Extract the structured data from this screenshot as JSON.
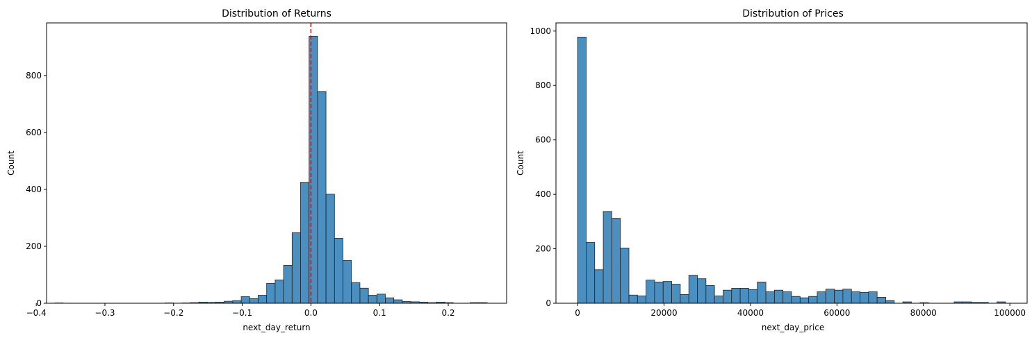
{
  "chart_data": [
    {
      "type": "bar",
      "subtype": "histogram",
      "title": "Distribution of Returns",
      "xlabel": "next_day_return",
      "ylabel": "Count",
      "xlim": [
        -0.385,
        0.285
      ],
      "ylim": [
        0,
        985
      ],
      "xticks": [
        -0.4,
        -0.3,
        -0.2,
        -0.1,
        0.0,
        0.1,
        0.2
      ],
      "xtick_labels": [
        "−0.4",
        "−0.3",
        "−0.2",
        "−0.1",
        "0.0",
        "0.1",
        "0.2"
      ],
      "yticks": [
        0,
        200,
        400,
        600,
        800
      ],
      "ytick_labels": [
        "0",
        "200",
        "400",
        "600",
        "800"
      ],
      "bar_color": "#4a8fc0",
      "reference_line": {
        "x": 0.0,
        "color": "#ff0000",
        "style": "dashed"
      },
      "bin_width": 0.01234,
      "bins": [
        {
          "x": -0.3731,
          "count": 1
        },
        {
          "x": -0.2126,
          "count": 1
        },
        {
          "x": -0.1879,
          "count": 1
        },
        {
          "x": -0.1756,
          "count": 2
        },
        {
          "x": -0.1633,
          "count": 4
        },
        {
          "x": -0.1509,
          "count": 3
        },
        {
          "x": -0.1386,
          "count": 4
        },
        {
          "x": -0.1262,
          "count": 7
        },
        {
          "x": -0.1139,
          "count": 9
        },
        {
          "x": -0.1015,
          "count": 23
        },
        {
          "x": -0.0892,
          "count": 16
        },
        {
          "x": -0.0768,
          "count": 28
        },
        {
          "x": -0.0645,
          "count": 70
        },
        {
          "x": -0.0521,
          "count": 82
        },
        {
          "x": -0.0398,
          "count": 133
        },
        {
          "x": -0.0274,
          "count": 248
        },
        {
          "x": -0.0151,
          "count": 425
        },
        {
          "x": -0.0027,
          "count": 938
        },
        {
          "x": 0.0096,
          "count": 744
        },
        {
          "x": 0.022,
          "count": 383
        },
        {
          "x": 0.0343,
          "count": 228
        },
        {
          "x": 0.0467,
          "count": 150
        },
        {
          "x": 0.059,
          "count": 72
        },
        {
          "x": 0.0714,
          "count": 53
        },
        {
          "x": 0.0837,
          "count": 28
        },
        {
          "x": 0.0961,
          "count": 32
        },
        {
          "x": 0.1084,
          "count": 19
        },
        {
          "x": 0.1208,
          "count": 12
        },
        {
          "x": 0.1331,
          "count": 6
        },
        {
          "x": 0.1455,
          "count": 5
        },
        {
          "x": 0.1578,
          "count": 4
        },
        {
          "x": 0.1702,
          "count": 2
        },
        {
          "x": 0.1825,
          "count": 4
        },
        {
          "x": 0.1949,
          "count": 2
        },
        {
          "x": 0.2319,
          "count": 2
        },
        {
          "x": 0.2443,
          "count": 2
        }
      ]
    },
    {
      "type": "bar",
      "subtype": "histogram",
      "title": "Distribution of Prices",
      "xlabel": "next_day_price",
      "ylabel": "Count",
      "xlim": [
        -5000,
        104000
      ],
      "ylim": [
        0,
        1030
      ],
      "xticks": [
        0,
        20000,
        40000,
        60000,
        80000,
        100000
      ],
      "xtick_labels": [
        "0",
        "20000",
        "40000",
        "60000",
        "80000",
        "100000"
      ],
      "yticks": [
        0,
        200,
        400,
        600,
        800,
        1000
      ],
      "ytick_labels": [
        "0",
        "200",
        "400",
        "600",
        "800",
        "1000"
      ],
      "bar_color": "#4a8fc0",
      "bin_start": 0,
      "bin_width": 1980,
      "counts": [
        978,
        223,
        123,
        337,
        312,
        203,
        30,
        27,
        85,
        78,
        80,
        70,
        32,
        103,
        90,
        65,
        27,
        48,
        55,
        55,
        50,
        78,
        42,
        48,
        42,
        25,
        20,
        25,
        42,
        52,
        48,
        52,
        42,
        40,
        42,
        22,
        10,
        0,
        5,
        0,
        2,
        0,
        0,
        0,
        5,
        5,
        3,
        3,
        0,
        5
      ]
    }
  ]
}
